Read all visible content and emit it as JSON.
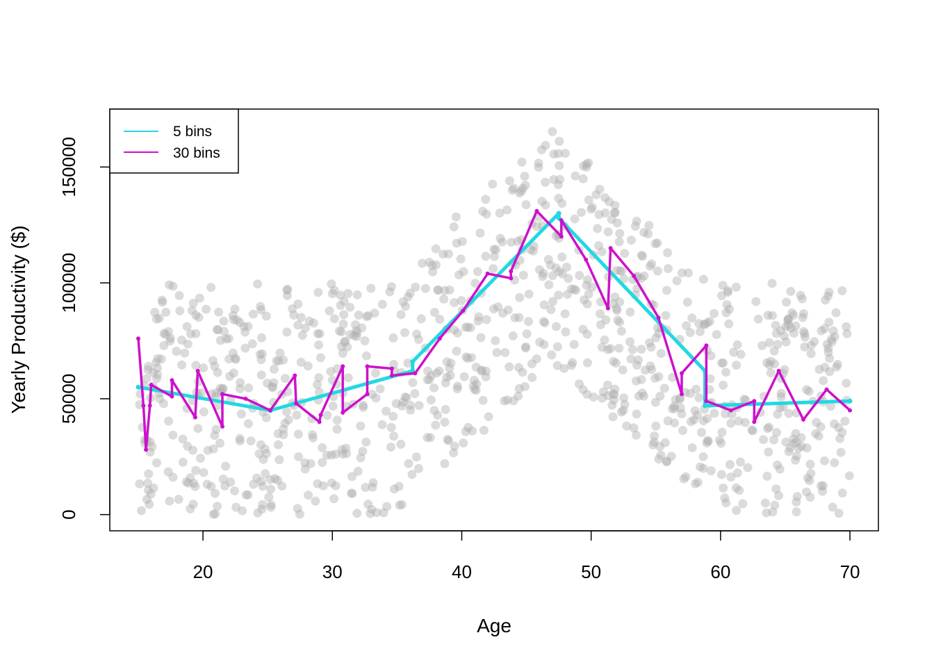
{
  "chart_data": {
    "type": "line",
    "title": "",
    "xlabel": "Age",
    "ylabel": "Yearly Productivity ($)",
    "xlim": [
      12.8,
      72.2
    ],
    "ylim": [
      -7000,
      175000
    ],
    "xticks": [
      20,
      30,
      40,
      50,
      60,
      70
    ],
    "yticks": [
      0,
      50000,
      100000,
      150000
    ],
    "grid": false,
    "legend_position": "top-left",
    "colors": {
      "points": "#b0b0b0",
      "bins5": "#22d8e2",
      "bins30": "#cc11cc"
    },
    "series": [
      {
        "name": "5 bins",
        "color": "#22d8e2",
        "x": [
          15,
          25.2,
          25.2,
          36.2,
          36.2,
          47.5,
          47.5,
          58.8,
          58.8,
          70
        ],
        "y": [
          55000,
          45000,
          45000,
          62000,
          66000,
          130000,
          128000,
          62000,
          47000,
          49000
        ]
      },
      {
        "name": "30 bins",
        "color": "#cc11cc",
        "x": [
          15,
          15.4,
          15.6,
          15.9,
          16.0,
          17.6,
          17.6,
          19.4,
          19.6,
          21.5,
          21.5,
          23.3,
          25.2,
          27.1,
          27.2,
          29.0,
          29.1,
          30.8,
          30.8,
          32.7,
          32.7,
          34.6,
          34.6,
          36.4,
          38.3,
          40.1,
          42.0,
          43.8,
          43.8,
          45.8,
          47.7,
          47.7,
          49.6,
          51.3,
          51.5,
          53.3,
          55.2,
          57.0,
          57.0,
          58.9,
          58.9,
          60.8,
          62.6,
          62.6,
          64.5,
          66.4,
          68.2,
          70.0
        ],
        "y": [
          76000,
          47000,
          28000,
          47000,
          56000,
          51000,
          58000,
          42000,
          62000,
          38000,
          52000,
          50000,
          45000,
          60000,
          48000,
          40000,
          43000,
          64000,
          44000,
          52000,
          64000,
          63000,
          60000,
          61000,
          76000,
          88000,
          104000,
          102000,
          105000,
          131000,
          120000,
          127000,
          110000,
          89000,
          115000,
          103000,
          85000,
          52000,
          61000,
          73000,
          49000,
          45000,
          49000,
          40000,
          62000,
          41000,
          54000,
          45000
        ]
      }
    ]
  },
  "legend": {
    "items": [
      {
        "label": "5 bins"
      },
      {
        "label": "30 bins"
      }
    ]
  }
}
